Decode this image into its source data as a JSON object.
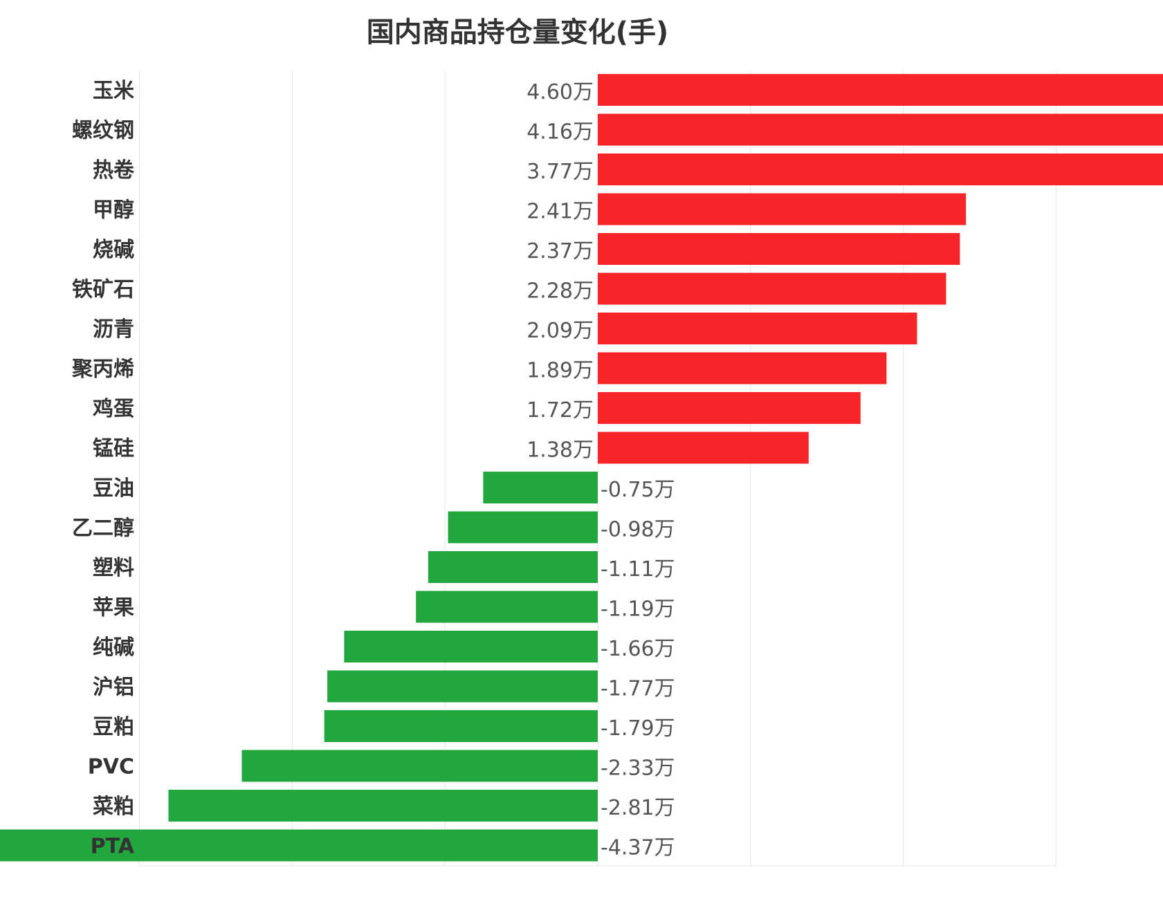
{
  "chart_data": {
    "type": "bar",
    "orientation": "horizontal",
    "title": "国内商品持仓量变化(手)",
    "xlabel": "",
    "ylabel": "",
    "unit": "万",
    "xlim": [
      -3,
      3
    ],
    "grid": true,
    "categories": [
      "玉米",
      "螺纹钢",
      "热卷",
      "甲醇",
      "烧碱",
      "铁矿石",
      "沥青",
      "聚丙烯",
      "鸡蛋",
      "锰硅",
      "豆油",
      "乙二醇",
      "塑料",
      "苹果",
      "纯碱",
      "沪铝",
      "豆粕",
      "PVC",
      "菜粕",
      "PTA"
    ],
    "values": [
      4.6,
      4.16,
      3.77,
      2.41,
      2.37,
      2.28,
      2.09,
      1.89,
      1.72,
      1.38,
      -0.75,
      -0.98,
      -1.11,
      -1.19,
      -1.66,
      -1.77,
      -1.79,
      -2.33,
      -2.81,
      -4.37
    ],
    "value_labels": [
      "4.60万",
      "4.16万",
      "3.77万",
      "2.41万",
      "2.37万",
      "2.28万",
      "2.09万",
      "1.89万",
      "1.72万",
      "1.38万",
      "-0.75万",
      "-0.98万",
      "-1.11万",
      "-1.19万",
      "-1.66万",
      "-1.77万",
      "-1.79万",
      "-2.33万",
      "-2.81万",
      "-4.37万"
    ],
    "colors": {
      "positive": "#f72428",
      "negative": "#21a73d"
    }
  }
}
